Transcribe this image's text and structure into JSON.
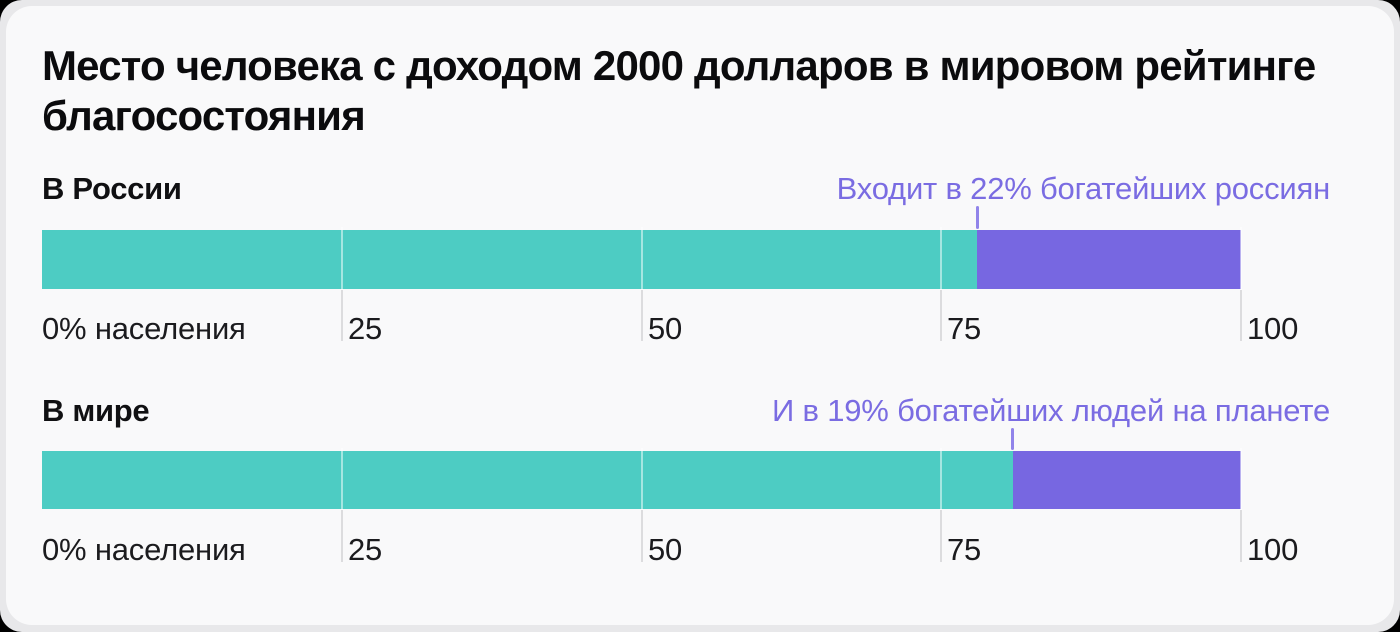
{
  "title": "Место человека с доходом 2000 долларов в мировом рейтинге благосостояния",
  "colors": {
    "teal_segment": "#4dccc3",
    "purple_segment": "#7767e1",
    "annotation_text": "#7a6ce2",
    "callout_tick": "#9184ea",
    "gridline": "#dcdcde",
    "axis_text": "#1b1b1e",
    "card_background": "#f9f9fa",
    "frame_background": "#e8e8ea"
  },
  "axis": {
    "origin_label": "0% населения",
    "tick_25": "25",
    "tick_50": "50",
    "tick_75": "75",
    "tick_100": "100"
  },
  "rows": [
    {
      "label": "В России",
      "annotation": "Входит в 22% богатейших россиян",
      "teal_pct": 78,
      "purple_pct": 22
    },
    {
      "label": "В мире",
      "annotation": "И в 19% богатейших людей на планете",
      "teal_pct": 81,
      "purple_pct": 19
    }
  ],
  "chart_data": {
    "type": "bar",
    "orientation": "horizontal",
    "title": "Место человека с доходом 2000 долларов в мировом рейтинге благосостояния",
    "categories": [
      "В России",
      "В мире"
    ],
    "series": [
      {
        "name": "teal_share",
        "values": [
          78,
          81
        ],
        "color": "#4dccc3"
      },
      {
        "name": "purple_share",
        "values": [
          22,
          19
        ],
        "color": "#7767e1"
      }
    ],
    "annotations": [
      {
        "text": "Входит в 22% богатейших россиян",
        "category": "В России",
        "x": 78
      },
      {
        "text": "И в 19% богатейших людей на планете",
        "category": "В мире",
        "x": 81
      }
    ],
    "xlim": [
      0,
      100
    ],
    "x_ticks": [
      0,
      25,
      50,
      75,
      100
    ],
    "x_tick_labels": [
      "0% населения",
      "25",
      "50",
      "75",
      "100"
    ],
    "grid": "vertical-only",
    "legend": "none"
  }
}
